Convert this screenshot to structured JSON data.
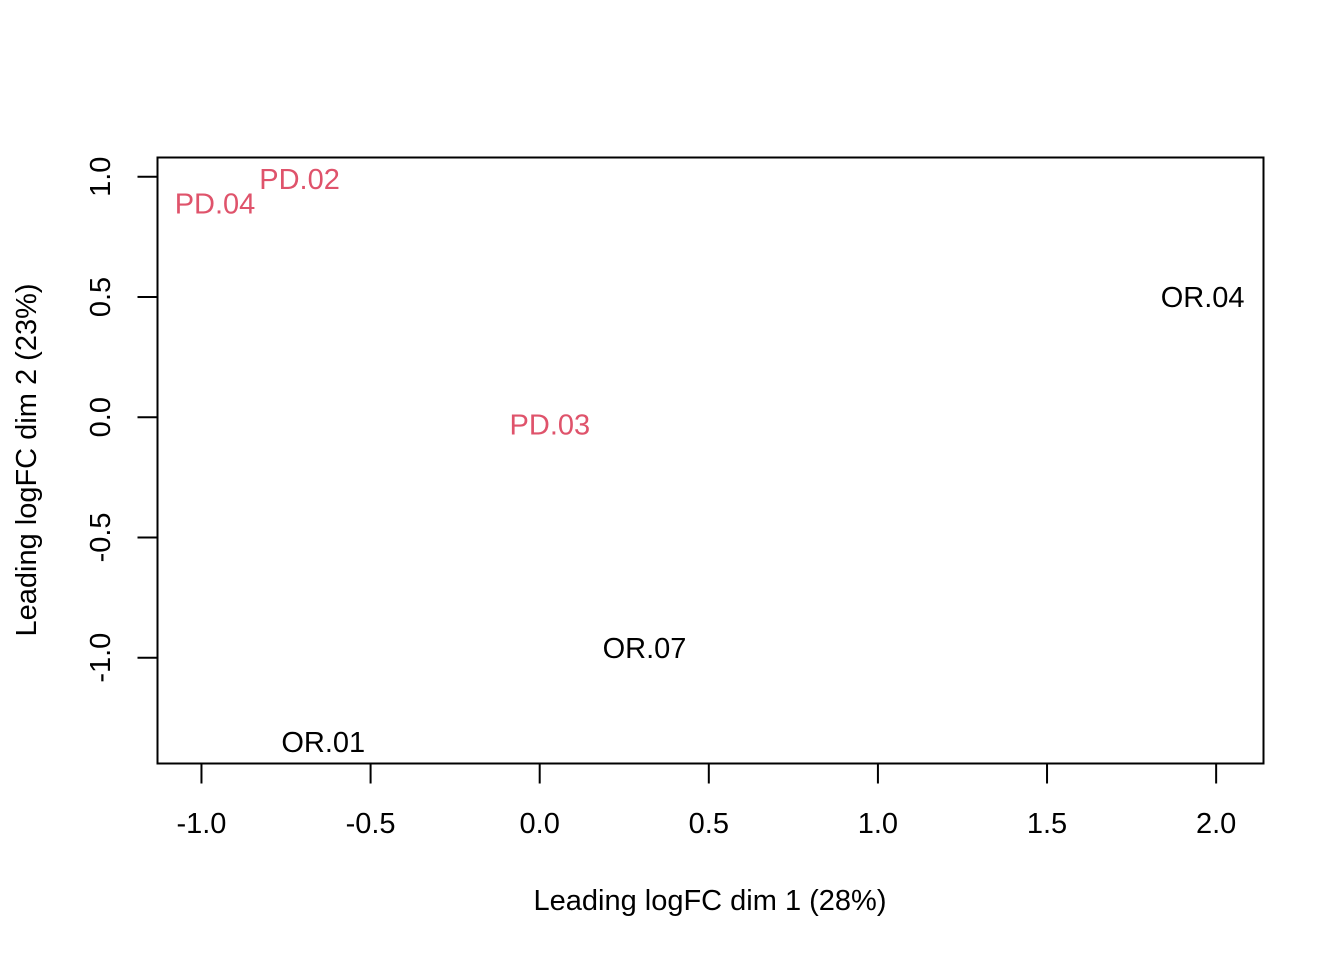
{
  "chart_data": {
    "type": "scatter",
    "title": "",
    "xlabel": "Leading logFC dim 1 (28%)",
    "ylabel": "Leading logFC dim 2 (23%)",
    "xlim": [
      -1.13,
      2.14
    ],
    "ylim": [
      -1.44,
      1.08
    ],
    "x_ticks": [
      -1.0,
      -0.5,
      0.0,
      0.5,
      1.0,
      1.5,
      2.0
    ],
    "x_tick_labels": [
      "-1.0",
      "-0.5",
      "0.0",
      "0.5",
      "1.0",
      "1.5",
      "2.0"
    ],
    "y_ticks": [
      -1.0,
      -0.5,
      0.0,
      0.5,
      1.0
    ],
    "y_tick_labels": [
      "-1.0",
      "-0.5",
      "0.0",
      "0.5",
      "1.0"
    ],
    "grid": false,
    "points": [
      {
        "label": "PD.02",
        "x": -0.71,
        "y": 0.98,
        "color": "#df536b"
      },
      {
        "label": "PD.04",
        "x": -0.96,
        "y": 0.88,
        "color": "#df536b"
      },
      {
        "label": "PD.03",
        "x": 0.03,
        "y": -0.04,
        "color": "#df536b"
      },
      {
        "label": "OR.04",
        "x": 1.96,
        "y": 0.49,
        "color": "#000000"
      },
      {
        "label": "OR.07",
        "x": 0.31,
        "y": -0.97,
        "color": "#000000"
      },
      {
        "label": "OR.01",
        "x": -0.64,
        "y": -1.36,
        "color": "#000000"
      }
    ]
  }
}
